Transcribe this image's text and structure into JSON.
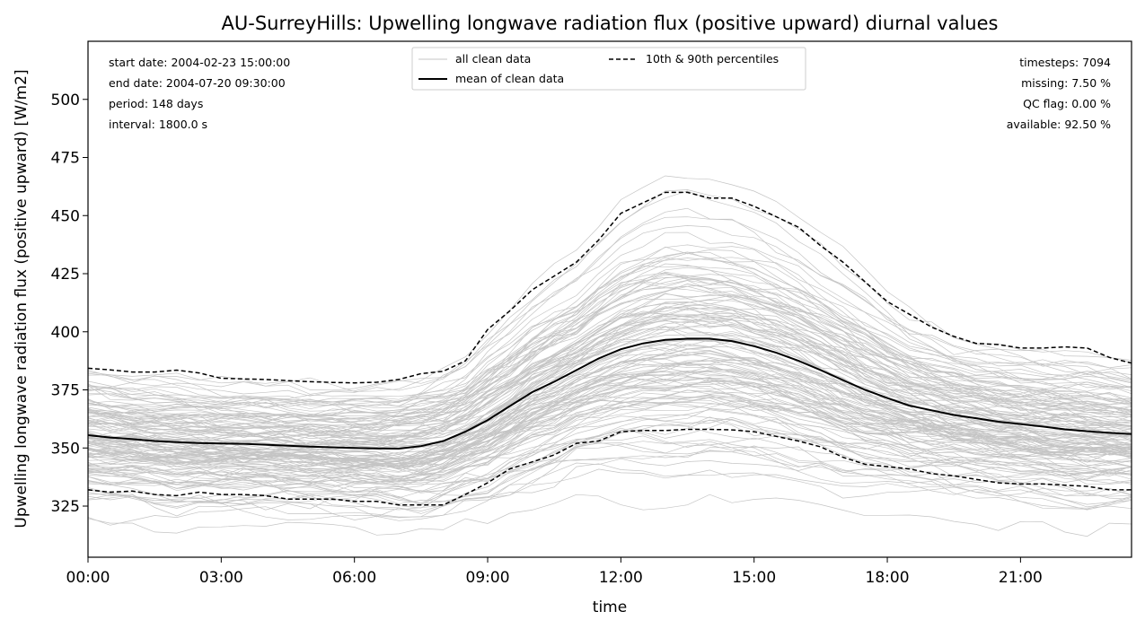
{
  "chart_data": {
    "type": "line",
    "title": "AU-SurreyHills: Upwelling longwave radiation flux (positive upward) diurnal values",
    "xlabel": "time",
    "ylabel": "Upwelling longwave radiation flux (positive upward) [W/m2]",
    "x_unit": "hours of day",
    "xlim": [
      0,
      23.5
    ],
    "ylim": [
      303,
      525
    ],
    "x_ticks": [
      0,
      3,
      6,
      9,
      12,
      15,
      18,
      21
    ],
    "x_tick_labels": [
      "00:00",
      "03:00",
      "06:00",
      "09:00",
      "12:00",
      "15:00",
      "18:00",
      "21:00"
    ],
    "y_ticks": [
      325,
      350,
      375,
      400,
      425,
      450,
      475,
      500
    ],
    "y_tick_labels": [
      "325",
      "350",
      "375",
      "400",
      "425",
      "450",
      "475",
      "500"
    ],
    "grid": false,
    "legend": {
      "placement": "top-center",
      "entries": [
        "all clean data",
        "mean of clean data",
        "10th & 90th percentiles"
      ]
    },
    "info_left": [
      "start date: 2004-02-23 15:00:00",
      "end date: 2004-07-20 09:30:00",
      "period: 148 days",
      "interval: 1800.0 s"
    ],
    "info_right": [
      "timesteps: 7094",
      "missing: 7.50 %",
      "QC flag: 0.00 %",
      "available: 92.50 %"
    ],
    "x": [
      0,
      0.5,
      1,
      1.5,
      2,
      2.5,
      3,
      3.5,
      4,
      4.5,
      5,
      5.5,
      6,
      6.5,
      7,
      7.5,
      8,
      8.5,
      9,
      9.5,
      10,
      10.5,
      11,
      11.5,
      12,
      12.5,
      13,
      13.5,
      14,
      14.5,
      15,
      15.5,
      16,
      16.5,
      17,
      17.5,
      18,
      18.5,
      19,
      19.5,
      20,
      20.5,
      21,
      21.5,
      22,
      22.5,
      23,
      23.5
    ],
    "series": [
      {
        "name": "mean of clean data",
        "style": "solid",
        "color": "#000000",
        "values": [
          355.5,
          354.5,
          353.8,
          353.0,
          352.5,
          352.1,
          351.9,
          351.8,
          351.4,
          351.0,
          350.6,
          350.3,
          350.0,
          349.8,
          349.7,
          350.8,
          353.0,
          357.0,
          362.0,
          368.0,
          374.0,
          378.5,
          383.5,
          388.5,
          392.5,
          395.0,
          396.5,
          397.0,
          397.0,
          396.0,
          393.8,
          391.0,
          387.5,
          383.5,
          379.2,
          375.0,
          371.5,
          368.2,
          366.2,
          364.2,
          362.8,
          361.3,
          360.3,
          359.2,
          358.0,
          357.2,
          356.5,
          356.0
        ]
      },
      {
        "name": "10th & 90th percentiles",
        "style": "dashed",
        "color": "#000000",
        "values": [
          384.3,
          383.6,
          382.7,
          382.7,
          383.5,
          382.3,
          380.0,
          379.7,
          379.5,
          379.0,
          378.5,
          378.2,
          378.0,
          378.3,
          379.5,
          382.0,
          383.0,
          387.5,
          401.0,
          409.0,
          418.0,
          424.0,
          430.0,
          439.5,
          451.0,
          455.5,
          460.0,
          460.0,
          457.5,
          457.5,
          454.0,
          449.5,
          445.0,
          437.0,
          430.0,
          421.5,
          413.0,
          407.5,
          402.0,
          398.0,
          395.0,
          394.5,
          393.0,
          393.0,
          393.5,
          393.0,
          389.0,
          386.5
        ]
      },
      {
        "name": "10th & 90th percentiles",
        "style": "dashed",
        "color": "#000000",
        "values": [
          332.0,
          331.0,
          331.5,
          330.0,
          329.5,
          331.0,
          330.0,
          330.0,
          329.5,
          328.0,
          328.0,
          328.0,
          327.0,
          327.0,
          325.5,
          325.5,
          325.5,
          330.0,
          335.0,
          341.0,
          344.0,
          347.0,
          352.0,
          353.0,
          357.0,
          357.5,
          357.5,
          358.0,
          358.0,
          357.8,
          357.0,
          355.0,
          353.0,
          350.5,
          346.0,
          343.0,
          342.0,
          341.0,
          339.0,
          338.0,
          336.5,
          335.0,
          334.5,
          334.5,
          334.0,
          333.5,
          332.0,
          332.0
        ]
      }
    ],
    "colors": {
      "clean_data_lines": "#c4c4c4",
      "mean": "#000000",
      "percentiles": "#000000"
    }
  }
}
